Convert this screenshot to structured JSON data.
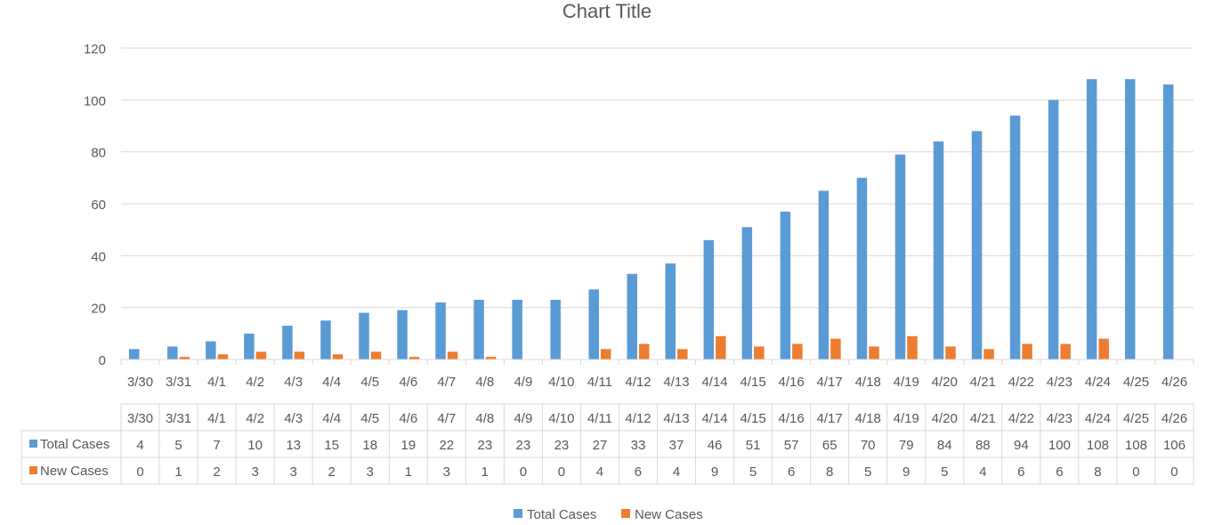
{
  "chart_data": {
    "type": "bar",
    "title": "Chart Title",
    "xlabel": "",
    "ylabel": "",
    "ylim": [
      0,
      120
    ],
    "yticks": [
      0,
      20,
      40,
      60,
      80,
      100,
      120
    ],
    "grid": true,
    "legend_position": "bottom",
    "data_table": true,
    "categories": [
      "3/30",
      "3/31",
      "4/1",
      "4/2",
      "4/3",
      "4/4",
      "4/5",
      "4/6",
      "4/7",
      "4/8",
      "4/9",
      "4/10",
      "4/11",
      "4/12",
      "4/13",
      "4/14",
      "4/15",
      "4/16",
      "4/17",
      "4/18",
      "4/19",
      "4/20",
      "4/21",
      "4/22",
      "4/23",
      "4/24",
      "4/25",
      "4/26"
    ],
    "series": [
      {
        "name": "Total Cases",
        "color": "#5B9BD5",
        "values": [
          4,
          5,
          7,
          10,
          13,
          15,
          18,
          19,
          22,
          23,
          23,
          23,
          27,
          33,
          37,
          46,
          51,
          57,
          65,
          70,
          79,
          84,
          88,
          94,
          100,
          108,
          108,
          106
        ]
      },
      {
        "name": "New Cases",
        "color": "#ED7D31",
        "values": [
          0,
          1,
          2,
          3,
          3,
          2,
          3,
          1,
          3,
          1,
          0,
          0,
          4,
          6,
          4,
          9,
          5,
          6,
          8,
          5,
          9,
          5,
          4,
          6,
          6,
          8,
          0,
          0
        ]
      }
    ]
  }
}
